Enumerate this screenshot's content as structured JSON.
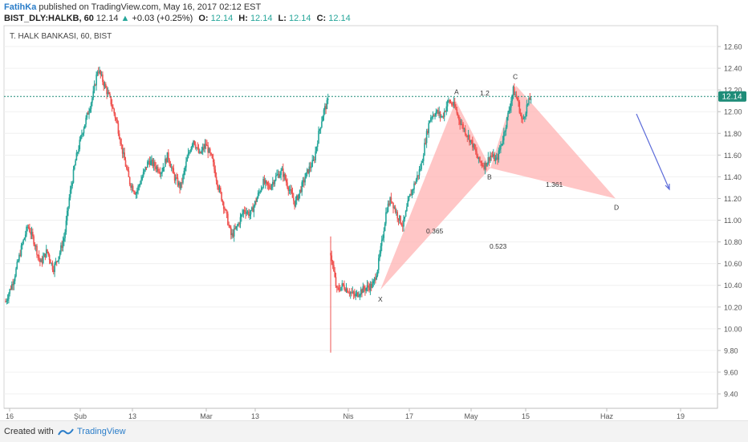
{
  "header": {
    "author": "FatihKa",
    "published": "published on TradingView.com, May 16, 2017 02:12 EST",
    "symbol": "BIST_DLY:HALKB, 60",
    "last": "12.14",
    "change_arrow": "▲",
    "change": "+0.03 (+0.25%)",
    "o_label": "O:",
    "o_value": "12.14",
    "h_label": "H:",
    "h_value": "12.14",
    "l_label": "L:",
    "l_value": "12.14",
    "c_label": "C:",
    "c_value": "12.14"
  },
  "footer": {
    "created_with": "Created with",
    "brand": "TradingView",
    "logo_icon": "tradingview-logo-icon"
  },
  "colors": {
    "up": "#26a69a",
    "down": "#ef5350",
    "pattern_fill": "#ffb3b3",
    "arrow": "#5c6bd9",
    "price_line": "#1e8c78"
  },
  "chart_data": {
    "type": "candlestick",
    "title": "T. HALK BANKASI, 60, BIST",
    "y_ticks": [
      "12.60",
      "12.40",
      "12.20",
      "12.00",
      "11.80",
      "11.60",
      "11.40",
      "11.20",
      "11.00",
      "10.80",
      "10.60",
      "10.40",
      "10.20",
      "10.00",
      "9.80",
      "9.60",
      "9.40"
    ],
    "ylim": [
      9.3,
      12.75
    ],
    "x_ticks": [
      "16",
      "Şub",
      "13",
      "Mar",
      "13",
      "Nis",
      "17",
      "May",
      "15",
      "Haz",
      "19"
    ],
    "current_price": 12.14,
    "price_label": "12.14",
    "segments": [
      {
        "name": "jan-mar",
        "points": [
          [
            0,
            10.25
          ],
          [
            5,
            10.45
          ],
          [
            10,
            10.75
          ],
          [
            14,
            10.95
          ],
          [
            18,
            10.8
          ],
          [
            22,
            10.6
          ],
          [
            26,
            10.72
          ],
          [
            30,
            10.55
          ],
          [
            34,
            10.7
          ],
          [
            37,
            10.85
          ],
          [
            40,
            11.2
          ],
          [
            44,
            11.55
          ],
          [
            48,
            11.8
          ],
          [
            52,
            12.0
          ],
          [
            55,
            12.15
          ],
          [
            58,
            12.4
          ],
          [
            62,
            12.25
          ],
          [
            66,
            12.1
          ],
          [
            70,
            11.9
          ],
          [
            74,
            11.6
          ],
          [
            78,
            11.35
          ],
          [
            82,
            11.25
          ],
          [
            86,
            11.4
          ],
          [
            90,
            11.55
          ],
          [
            94,
            11.5
          ],
          [
            98,
            11.45
          ],
          [
            102,
            11.6
          ],
          [
            106,
            11.4
          ],
          [
            110,
            11.3
          ],
          [
            114,
            11.55
          ],
          [
            118,
            11.75
          ],
          [
            122,
            11.6
          ],
          [
            126,
            11.7
          ],
          [
            130,
            11.55
          ],
          [
            134,
            11.3
          ],
          [
            138,
            11.1
          ],
          [
            142,
            10.85
          ],
          [
            146,
            10.95
          ],
          [
            150,
            11.1
          ],
          [
            154,
            11.05
          ],
          [
            158,
            11.2
          ],
          [
            162,
            11.35
          ],
          [
            166,
            11.3
          ],
          [
            170,
            11.4
          ],
          [
            174,
            11.45
          ],
          [
            178,
            11.3
          ],
          [
            182,
            11.15
          ],
          [
            186,
            11.3
          ],
          [
            190,
            11.45
          ],
          [
            194,
            11.55
          ],
          [
            197,
            11.8
          ],
          [
            200,
            12.0
          ],
          [
            203,
            12.1
          ]
        ]
      },
      {
        "name": "apr-may",
        "points": [
          [
            0,
            10.7
          ],
          [
            4,
            10.35
          ],
          [
            8,
            10.4
          ],
          [
            12,
            10.35
          ],
          [
            16,
            10.3
          ],
          [
            20,
            10.35
          ],
          [
            24,
            10.38
          ],
          [
            28,
            10.4
          ],
          [
            31,
            10.55
          ],
          [
            34,
            10.8
          ],
          [
            37,
            11.1
          ],
          [
            40,
            11.2
          ],
          [
            44,
            11.05
          ],
          [
            48,
            10.95
          ],
          [
            52,
            11.2
          ],
          [
            56,
            11.35
          ],
          [
            60,
            11.5
          ],
          [
            63,
            11.75
          ],
          [
            66,
            11.95
          ],
          [
            70,
            12.0
          ],
          [
            74,
            11.95
          ],
          [
            78,
            12.1
          ],
          [
            82,
            12.05
          ],
          [
            86,
            11.9
          ],
          [
            90,
            11.8
          ],
          [
            94,
            11.7
          ],
          [
            98,
            11.55
          ],
          [
            102,
            11.5
          ],
          [
            106,
            11.6
          ],
          [
            110,
            11.55
          ],
          [
            114,
            11.75
          ],
          [
            118,
            12.0
          ],
          [
            121,
            12.2
          ],
          [
            124,
            12.1
          ],
          [
            127,
            11.9
          ],
          [
            130,
            12.05
          ],
          [
            133,
            12.14
          ]
        ]
      }
    ],
    "spike_low": 9.78,
    "pattern_points": [
      {
        "label": "X",
        "price": 10.36
      },
      {
        "label": "A",
        "price": 12.1
      },
      {
        "label": "B",
        "price": 11.48
      },
      {
        "label": "C",
        "price": 12.24
      },
      {
        "label": "D",
        "price": 11.2
      }
    ],
    "ratio_labels": [
      "1.2",
      "0.365",
      "0.523",
      "1.361"
    ]
  }
}
